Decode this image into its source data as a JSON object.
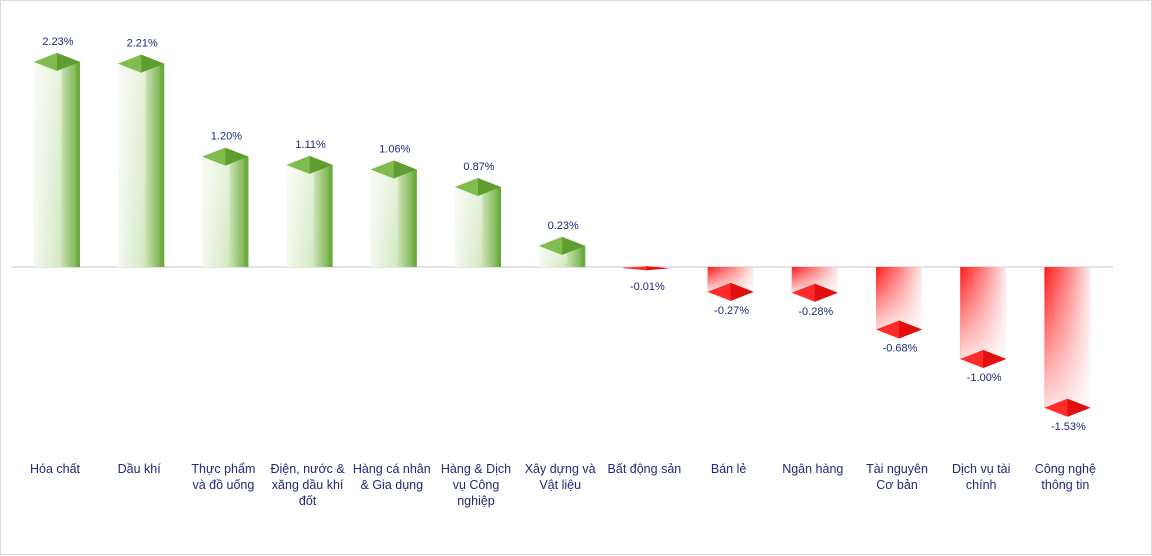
{
  "chart_data": {
    "type": "bar",
    "categories": [
      "Hóa chất",
      "Dầu khí",
      "Thực phẩm\nvà đồ uống",
      "Điện, nước &\nxăng dầu khí\nđốt",
      "Hàng cá nhân\n& Gia dụng",
      "Hàng & Dịch\nvụ Công\nnghiệp",
      "Xây dựng và\nVật liệu",
      "Bất động sản",
      "Bán lẻ",
      "Ngân hàng",
      "Tài nguyên\nCơ bản",
      "Dịch vụ tài\nchính",
      "Công nghệ\nthông tin"
    ],
    "values": [
      2.23,
      2.21,
      1.2,
      1.11,
      1.06,
      0.87,
      0.23,
      -0.01,
      -0.27,
      -0.28,
      -0.68,
      -1.0,
      -1.53
    ],
    "labels": [
      "2.23%",
      "2.21%",
      "1.20%",
      "1.11%",
      "1.06%",
      "0.87%",
      "0.23%",
      "-0.01%",
      "-0.27%",
      "-0.28%",
      "-0.68%",
      "-1.00%",
      "-1.53%"
    ],
    "title": "",
    "xlabel": "",
    "ylabel": "",
    "ylim": [
      -1.6,
      2.3
    ],
    "grid": false,
    "colors": {
      "positive": "#6aaa3a",
      "positive_light": "#ffffff",
      "negative": "#ff2020",
      "negative_light": "#ffffff",
      "axis": "#c8c8c8",
      "text": "#1f2a7a"
    }
  }
}
